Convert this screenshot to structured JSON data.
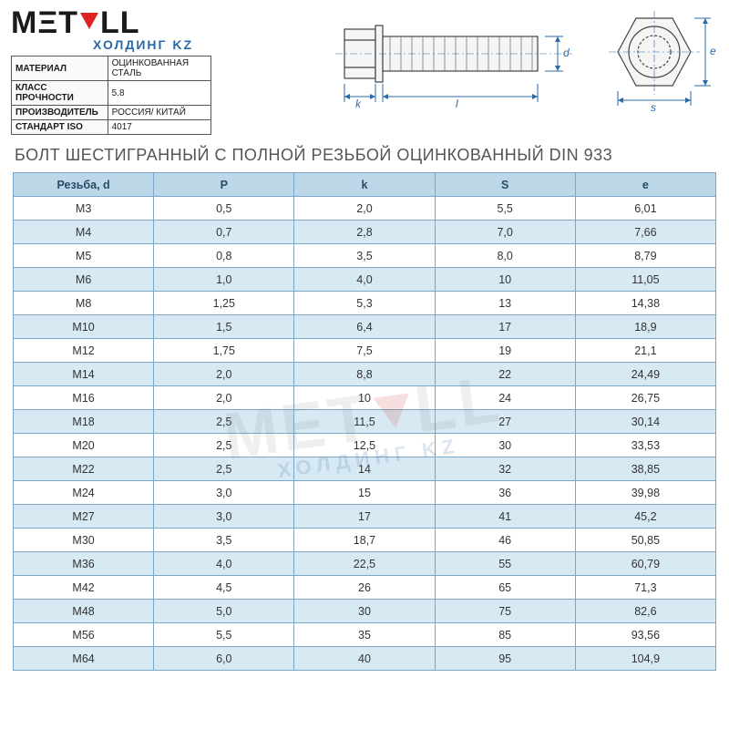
{
  "logo": {
    "text_left": "M",
    "text_mid": "T",
    "text_right": "LL",
    "e_char": "Ξ",
    "sub": "ХОЛДИНГ KZ"
  },
  "specs": {
    "rows": [
      {
        "label": "МАТЕРИАЛ",
        "value": "ОЦИНКОВАННАЯ СТАЛЬ"
      },
      {
        "label": "КЛАСС ПРОЧНОСТИ",
        "value": "5.8"
      },
      {
        "label": "ПРОИЗВОДИТЕЛЬ",
        "value": "РОССИЯ/ КИТАЙ"
      },
      {
        "label": "СТАНДАРТ ISO",
        "value": "4017"
      }
    ]
  },
  "diagram": {
    "labels": {
      "k": "k",
      "l": "l",
      "d": "d",
      "s": "s",
      "e": "e"
    }
  },
  "title": "БОЛТ ШЕСТИГРАННЫЙ С ПОЛНОЙ РЕЗЬБОЙ ОЦИНКОВАННЫЙ DIN 933",
  "table": {
    "columns": [
      "Резьба, d",
      "P",
      "k",
      "S",
      "e"
    ],
    "col_widths": [
      "20%",
      "20%",
      "20%",
      "20%",
      "20%"
    ],
    "header_bg": "#bcd7e8",
    "row_bg_even": "#d7e9f3",
    "row_bg_odd": "#ffffff",
    "border_color": "#7aa7c7",
    "text_color": "#333333",
    "header_text_color": "#2a4a66",
    "fontsize": 12.5,
    "rows": [
      [
        "M3",
        "0,5",
        "2,0",
        "5,5",
        "6,01"
      ],
      [
        "M4",
        "0,7",
        "2,8",
        "7,0",
        "7,66"
      ],
      [
        "M5",
        "0,8",
        "3,5",
        "8,0",
        "8,79"
      ],
      [
        "M6",
        "1,0",
        "4,0",
        "10",
        "11,05"
      ],
      [
        "M8",
        "1,25",
        "5,3",
        "13",
        "14,38"
      ],
      [
        "M10",
        "1,5",
        "6,4",
        "17",
        "18,9"
      ],
      [
        "M12",
        "1,75",
        "7,5",
        "19",
        "21,1"
      ],
      [
        "M14",
        "2,0",
        "8,8",
        "22",
        "24,49"
      ],
      [
        "M16",
        "2,0",
        "10",
        "24",
        "26,75"
      ],
      [
        "M18",
        "2,5",
        "11,5",
        "27",
        "30,14"
      ],
      [
        "M20",
        "2,5",
        "12,5",
        "30",
        "33,53"
      ],
      [
        "M22",
        "2,5",
        "14",
        "32",
        "38,85"
      ],
      [
        "M24",
        "3,0",
        "15",
        "36",
        "39,98"
      ],
      [
        "M27",
        "3,0",
        "17",
        "41",
        "45,2"
      ],
      [
        "M30",
        "3,5",
        "18,7",
        "46",
        "50,85"
      ],
      [
        "M36",
        "4,0",
        "22,5",
        "55",
        "60,79"
      ],
      [
        "M42",
        "4,5",
        "26",
        "65",
        "71,3"
      ],
      [
        "M48",
        "5,0",
        "30",
        "75",
        "82,6"
      ],
      [
        "M56",
        "5,5",
        "35",
        "85",
        "93,56"
      ],
      [
        "M64",
        "6,0",
        "40",
        "95",
        "104,9"
      ]
    ]
  },
  "watermark": {
    "main": "METALL",
    "sub": "ХОЛДИНГ KZ"
  },
  "colors": {
    "accent_blue": "#2a6aa8",
    "accent_red": "#d22222",
    "line_gray": "#444444",
    "background": "#ffffff"
  }
}
